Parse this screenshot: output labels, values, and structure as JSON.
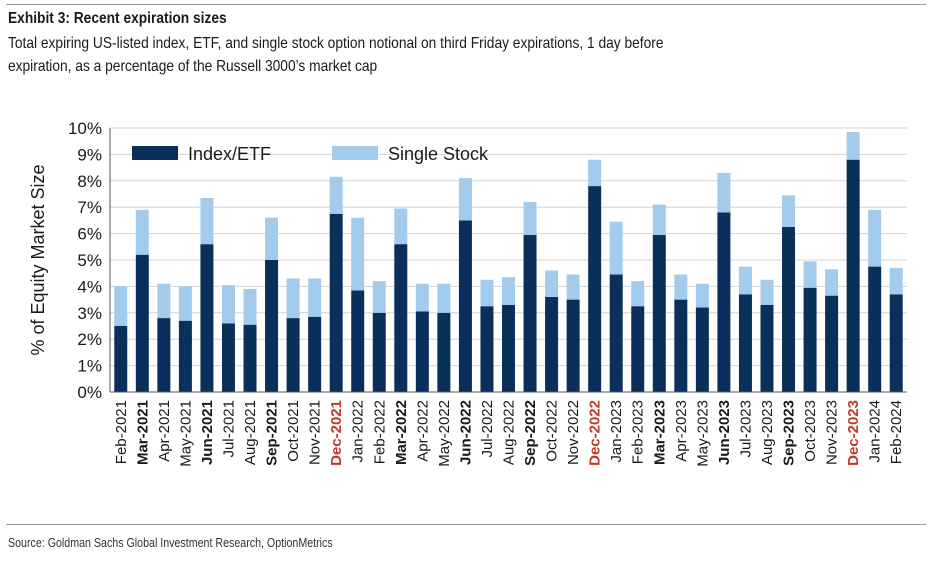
{
  "exhibit": {
    "title": "Exhibit 3: Recent expiration sizes",
    "subtitle_lines": [
      "Total expiring US-listed index, ETF, and single stock option notional on third Friday expirations, 1 day before",
      "expiration, as a percentage of the Russell 3000’s market cap"
    ],
    "source": "Source: Goldman Sachs Global Investment Research, OptionMetrics"
  },
  "colors": {
    "index_etf": "#0b2f5b",
    "single_stock": "#a3cbeb",
    "highlight_label": "#c0392b",
    "grid": "#d4d4d4",
    "axis_text": "#1a1a1a"
  },
  "chart_data": {
    "type": "bar",
    "stacked": true,
    "ylabel": "% of Equity Market Size",
    "ylim": [
      0,
      10
    ],
    "yticks": [
      "0%",
      "1%",
      "2%",
      "3%",
      "4%",
      "5%",
      "6%",
      "7%",
      "8%",
      "9%",
      "10%"
    ],
    "grid": true,
    "legend_position": "top-left",
    "categories": [
      "Feb-2021",
      "Mar-2021",
      "Apr-2021",
      "May-2021",
      "Jun-2021",
      "Jul-2021",
      "Aug-2021",
      "Sep-2021",
      "Oct-2021",
      "Nov-2021",
      "Dec-2021",
      "Jan-2022",
      "Feb-2022",
      "Mar-2022",
      "Apr-2022",
      "May-2022",
      "Jun-2022",
      "Jul-2022",
      "Aug-2022",
      "Sep-2022",
      "Oct-2022",
      "Nov-2022",
      "Dec-2022",
      "Jan-2023",
      "Feb-2023",
      "Mar-2023",
      "Apr-2023",
      "May-2023",
      "Jun-2023",
      "Jul-2023",
      "Aug-2023",
      "Sep-2023",
      "Oct-2023",
      "Nov-2023",
      "Dec-2023",
      "Jan-2024",
      "Feb-2024"
    ],
    "bold_categories": [
      "Mar-2021",
      "Jun-2021",
      "Sep-2021",
      "Dec-2021",
      "Mar-2022",
      "Jun-2022",
      "Sep-2022",
      "Dec-2022",
      "Mar-2023",
      "Jun-2023",
      "Sep-2023",
      "Dec-2023"
    ],
    "highlighted_categories": [
      "Dec-2021",
      "Dec-2022",
      "Dec-2023"
    ],
    "series": [
      {
        "name": "Index/ETF",
        "values": [
          2.5,
          5.2,
          2.8,
          2.7,
          5.6,
          2.6,
          2.55,
          5.0,
          2.8,
          2.85,
          6.75,
          3.85,
          3.0,
          5.6,
          3.05,
          3.0,
          6.5,
          3.25,
          3.3,
          5.95,
          3.6,
          3.5,
          7.8,
          4.45,
          3.25,
          5.95,
          3.5,
          3.2,
          6.8,
          3.7,
          3.3,
          6.25,
          3.95,
          3.65,
          8.8,
          4.75,
          3.7
        ]
      },
      {
        "name": "Single Stock",
        "values": [
          1.5,
          1.7,
          1.3,
          1.3,
          1.75,
          1.45,
          1.35,
          1.6,
          1.5,
          1.45,
          1.4,
          2.75,
          1.2,
          1.35,
          1.05,
          1.1,
          1.6,
          1.0,
          1.05,
          1.25,
          1.0,
          0.95,
          1.0,
          2.0,
          0.95,
          1.15,
          0.95,
          0.9,
          1.5,
          1.05,
          0.95,
          1.2,
          1.0,
          1.0,
          1.05,
          2.15,
          1.0
        ]
      }
    ]
  }
}
